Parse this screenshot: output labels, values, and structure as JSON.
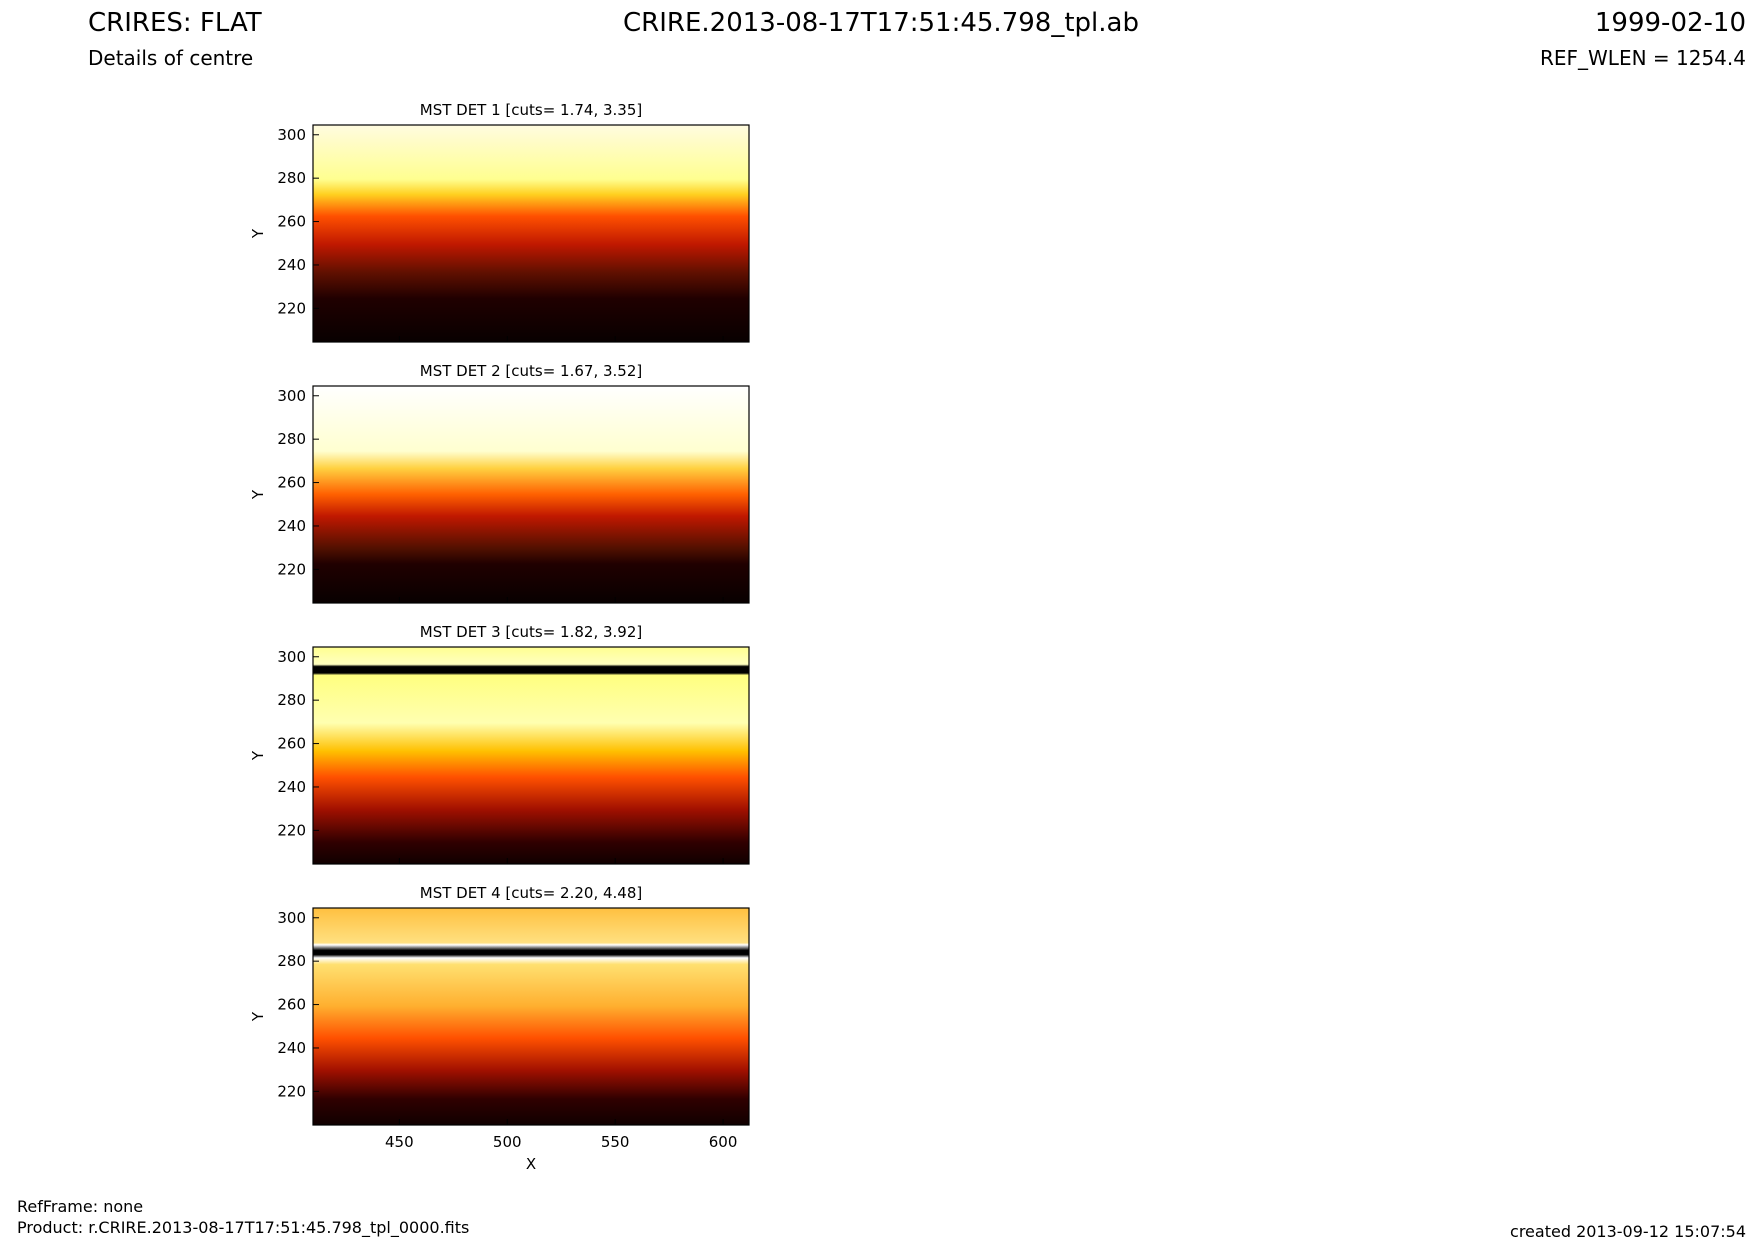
{
  "header": {
    "title": "CRIRES: FLAT",
    "subtitle": "Details of centre",
    "file": "CRIRE.2013-08-17T17:51:45.798_tpl.ab",
    "date": "1999-02-10",
    "ref_wlen": "REF_WLEN = 1254.4"
  },
  "footer": {
    "ref_frame": "RefFrame: none",
    "product": "Product: r.CRIRE.2013-08-17T17:51:45.798_tpl_0000.fits",
    "created": "created 2013-09-12 15:07:54"
  },
  "chart_data": [
    {
      "type": "image",
      "title": "MST DET 1 [cuts= 1.74, 3.35]",
      "ylabel": "Y",
      "xlim": [
        410,
        612
      ],
      "ylim": [
        204.5,
        304.5
      ],
      "xticks": [
        450,
        500,
        550,
        600
      ],
      "yticks": [
        220,
        240,
        260,
        280,
        300
      ]
    },
    {
      "type": "image",
      "title": "MST DET 2 [cuts= 1.67, 3.52]",
      "ylabel": "Y",
      "xlim": [
        410,
        612
      ],
      "ylim": [
        204.5,
        304.5
      ],
      "xticks": [
        450,
        500,
        550,
        600
      ],
      "yticks": [
        220,
        240,
        260,
        280,
        300
      ]
    },
    {
      "type": "image",
      "title": "MST DET 3 [cuts= 1.82, 3.92]",
      "ylabel": "Y",
      "xlim": [
        410,
        612
      ],
      "ylim": [
        204.5,
        304.5
      ],
      "xticks": [
        450,
        500,
        550,
        600
      ],
      "yticks": [
        220,
        240,
        260,
        280,
        300
      ]
    },
    {
      "type": "image",
      "title": "MST DET 4 [cuts= 2.20, 4.48]",
      "ylabel": "Y",
      "xlabel": "X",
      "xlim": [
        410,
        612
      ],
      "ylim": [
        204.5,
        304.5
      ],
      "xticks": [
        450,
        500,
        550,
        600
      ],
      "yticks": [
        220,
        240,
        260,
        280,
        300
      ]
    }
  ]
}
